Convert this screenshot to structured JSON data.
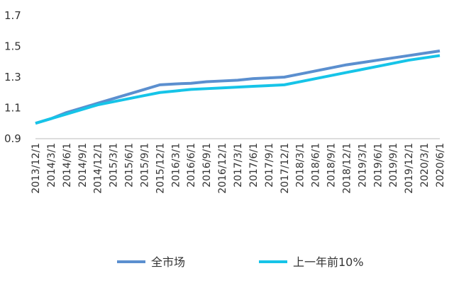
{
  "chart_data": {
    "type": "line",
    "categories": [
      "2013/12/1",
      "2014/3/1",
      "2014/6/1",
      "2014/9/1",
      "2014/12/1",
      "2015/3/1",
      "2015/6/1",
      "2015/9/1",
      "2015/12/1",
      "2016/3/1",
      "2016/6/1",
      "2016/9/1",
      "2016/12/1",
      "2017/3/1",
      "2017/6/1",
      "2017/9/1",
      "2017/12/1",
      "2018/3/1",
      "2018/6/1",
      "2018/9/1",
      "2018/12/1",
      "2019/3/1",
      "2019/6/1",
      "2019/9/1",
      "2019/12/1",
      "2020/3/1",
      "2020/6/1"
    ],
    "series": [
      {
        "name": "全市场",
        "color": "#5b8fcf",
        "values": [
          1.0,
          1.03,
          1.07,
          1.1,
          1.13,
          1.16,
          1.19,
          1.22,
          1.25,
          1.256,
          1.26,
          1.27,
          1.275,
          1.28,
          1.29,
          1.295,
          1.3,
          1.32,
          1.34,
          1.36,
          1.38,
          1.395,
          1.41,
          1.425,
          1.44,
          1.455,
          1.47
        ]
      },
      {
        "name": "上一年前10%",
        "color": "#16c4e8",
        "values": [
          1.0,
          1.03,
          1.06,
          1.09,
          1.12,
          1.14,
          1.16,
          1.18,
          1.2,
          1.21,
          1.22,
          1.225,
          1.23,
          1.235,
          1.24,
          1.245,
          1.25,
          1.27,
          1.29,
          1.31,
          1.33,
          1.35,
          1.37,
          1.39,
          1.41,
          1.425,
          1.44
        ]
      }
    ],
    "ylim": [
      0.9,
      1.7
    ],
    "yticks": [
      0.9,
      1.1,
      1.3,
      1.5,
      1.7
    ],
    "legend": "bottom"
  }
}
